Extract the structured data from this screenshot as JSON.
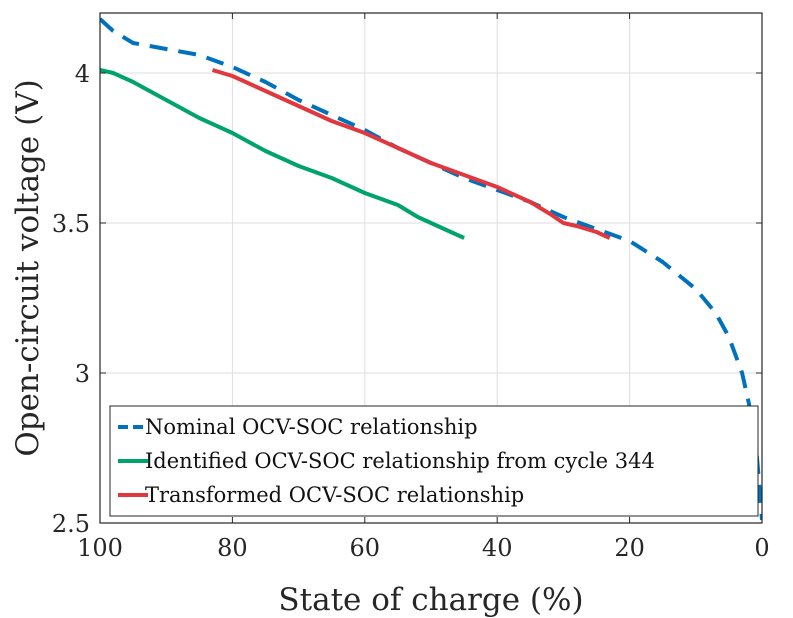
{
  "chart_data": {
    "type": "line",
    "xlabel": "State of charge (%)",
    "ylabel": "Open-circuit voltage (V)",
    "xlim": [
      100,
      0
    ],
    "ylim": [
      2.5,
      4.2
    ],
    "x_reversed": true,
    "grid": true,
    "x_ticks": [
      100,
      80,
      60,
      40,
      20,
      0
    ],
    "y_ticks": [
      2.5,
      3,
      3.5,
      4
    ],
    "y_tick_labels": [
      "2.5",
      "3",
      "3.5",
      "4"
    ],
    "legend_position": "bottom-left",
    "series": [
      {
        "name": "Nominal OCV-SOC relationship",
        "color": "#0072BD",
        "style": "dashed",
        "x": [
          100,
          98,
          95,
          90,
          85,
          80,
          75,
          70,
          65,
          60,
          55,
          50,
          45,
          40,
          35,
          30,
          25,
          20,
          15,
          10,
          7,
          5,
          3,
          2,
          1,
          0.5,
          0
        ],
        "y": [
          4.18,
          4.14,
          4.1,
          4.08,
          4.06,
          4.02,
          3.97,
          3.91,
          3.86,
          3.81,
          3.75,
          3.7,
          3.65,
          3.61,
          3.57,
          3.52,
          3.48,
          3.44,
          3.37,
          3.28,
          3.2,
          3.12,
          3.0,
          2.9,
          2.78,
          2.65,
          2.51
        ]
      },
      {
        "name": "Identified OCV-SOC relationship from cycle 344",
        "color": "#00A36C",
        "style": "solid",
        "x": [
          100,
          98,
          95,
          90,
          85,
          80,
          75,
          70,
          65,
          60,
          55,
          52,
          50,
          48,
          46,
          45
        ],
        "y": [
          4.01,
          4.0,
          3.97,
          3.91,
          3.85,
          3.8,
          3.74,
          3.69,
          3.65,
          3.6,
          3.56,
          3.52,
          3.5,
          3.48,
          3.46,
          3.45
        ]
      },
      {
        "name": "Transformed OCV-SOC relationship",
        "color": "#E0383E",
        "style": "solid",
        "x": [
          83,
          80,
          75,
          70,
          65,
          60,
          55,
          50,
          45,
          40,
          35,
          32,
          30,
          28,
          25,
          23
        ],
        "y": [
          4.01,
          3.99,
          3.94,
          3.89,
          3.84,
          3.8,
          3.75,
          3.7,
          3.66,
          3.62,
          3.57,
          3.53,
          3.5,
          3.49,
          3.47,
          3.45
        ]
      }
    ]
  }
}
